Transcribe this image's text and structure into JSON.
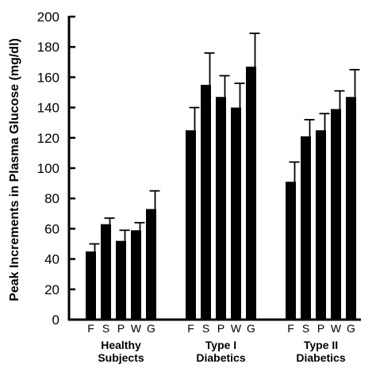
{
  "chart_data": {
    "type": "bar",
    "title": "",
    "ylabel": "Peak Increments in Plasma Glucose (mg/dl)",
    "xlabel": "",
    "ylim": [
      0,
      200
    ],
    "yticks": [
      0,
      20,
      40,
      60,
      80,
      100,
      120,
      140,
      160,
      180,
      200
    ],
    "categories": [
      "F",
      "S",
      "P",
      "W",
      "G"
    ],
    "groups": [
      {
        "label_lines": [
          "Healthy",
          "Subjects"
        ],
        "values": [
          45,
          63,
          52,
          59,
          73
        ],
        "errors": [
          5,
          4,
          7,
          5,
          12
        ]
      },
      {
        "label_lines": [
          "Type I",
          "Diabetics"
        ],
        "values": [
          125,
          155,
          147,
          140,
          167
        ],
        "errors": [
          15,
          21,
          14,
          16,
          22
        ]
      },
      {
        "label_lines": [
          "Type II",
          "Diabetics"
        ],
        "values": [
          91,
          121,
          125,
          139,
          147
        ],
        "errors": [
          13,
          11,
          11,
          12,
          18
        ]
      }
    ],
    "bar_color": "#000000",
    "grid": false,
    "legend": "none"
  }
}
